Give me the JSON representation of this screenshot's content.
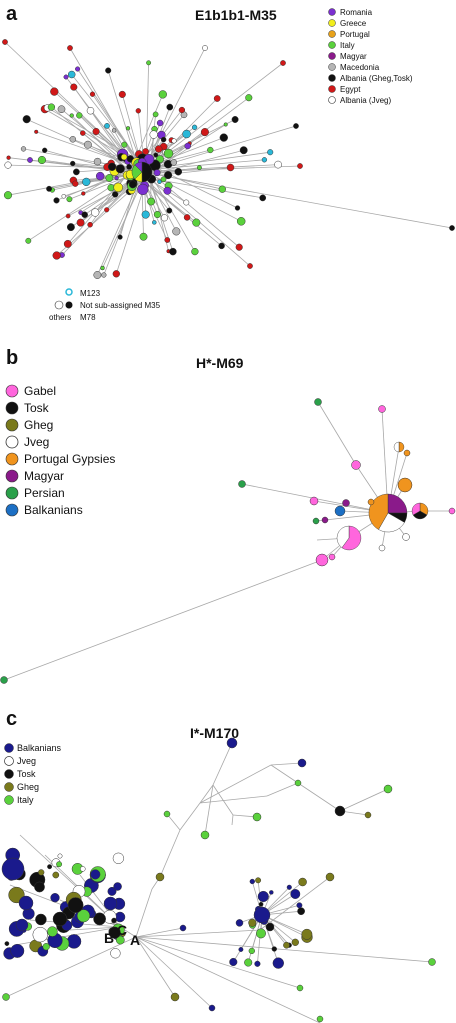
{
  "panel_a": {
    "letter": "a",
    "title": "E1b1b1-M35",
    "legend": [
      {
        "label": "Romania",
        "color": "#7b2fd0"
      },
      {
        "label": "Greece",
        "color": "#f2ee1c"
      },
      {
        "label": "Portugal",
        "color": "#e8a21a"
      },
      {
        "label": "Italy",
        "color": "#5ad13c"
      },
      {
        "label": "Magyar",
        "color": "#8b1a8b"
      },
      {
        "label": "Macedonia",
        "color": "#b5b5b5"
      },
      {
        "label": "Albania (Gheg,Tosk)",
        "color": "#111111"
      },
      {
        "label": "Egypt",
        "color": "#d01818"
      },
      {
        "label": "Albania (Jveg)",
        "color": "#ffffff"
      }
    ],
    "key": {
      "m123": "M123",
      "not_sub": "Not sub-assigned M35",
      "others": "others",
      "m78": "M78"
    }
  },
  "panel_b": {
    "letter": "b",
    "title": "H*-M69",
    "legend": [
      {
        "label": "Gabel",
        "color": "#ff66dd"
      },
      {
        "label": "Tosk",
        "color": "#111111"
      },
      {
        "label": "Gheg",
        "color": "#7a7a1c"
      },
      {
        "label": "Jveg",
        "color": "#ffffff"
      },
      {
        "label": "Portugal Gypsies",
        "color": "#f0941e"
      },
      {
        "label": "Magyar",
        "color": "#8a1a8a"
      },
      {
        "label": "Persian",
        "color": "#2aa04a"
      },
      {
        "label": "Balkanians",
        "color": "#1c6fc4"
      }
    ]
  },
  "panel_c": {
    "letter": "c",
    "title": "I*-M170",
    "legend": [
      {
        "label": "Balkanians",
        "color": "#1a1a8c"
      },
      {
        "label": "Jveg",
        "color": "#ffffff"
      },
      {
        "label": "Tosk",
        "color": "#111111"
      },
      {
        "label": "Gheg",
        "color": "#7a7a1c"
      },
      {
        "label": "Italy",
        "color": "#5ad13c"
      }
    ],
    "node_labels": {
      "a": "A",
      "b": "B",
      "c": "C"
    }
  }
}
